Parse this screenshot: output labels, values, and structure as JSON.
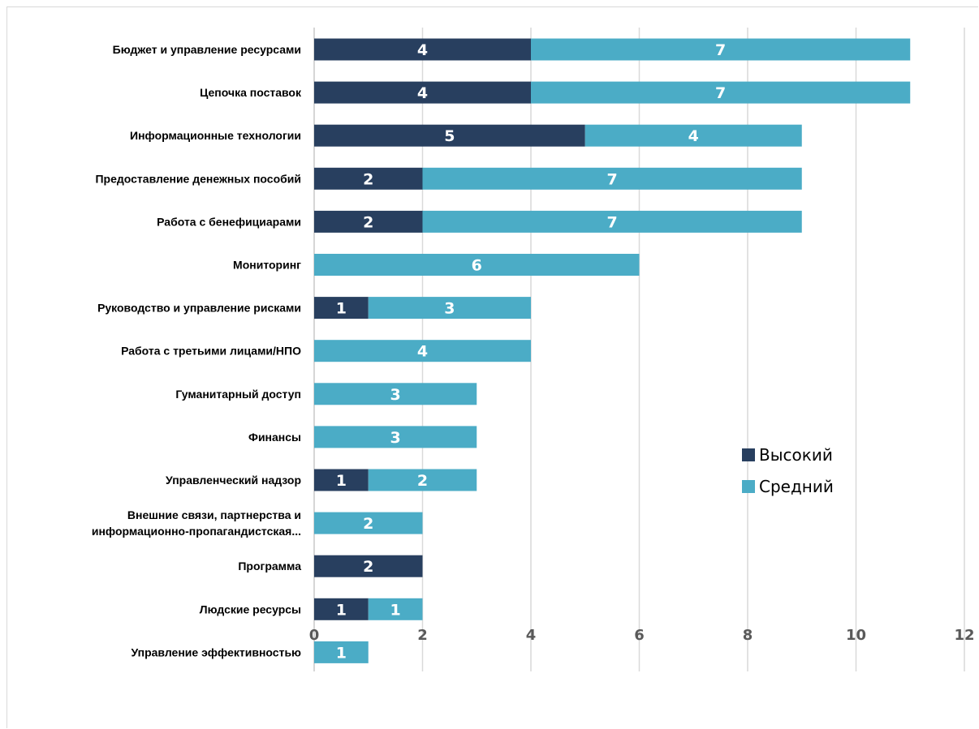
{
  "chart_data": {
    "type": "bar",
    "orientation": "horizontal",
    "stacked": true,
    "categories": [
      [
        "Бюджет и управление ресурсами"
      ],
      [
        "Цепочка поставок"
      ],
      [
        "Информационные технологии"
      ],
      [
        "Предоставление денежных пособий"
      ],
      [
        "Работа с бенефициарами"
      ],
      [
        "Мониторинг"
      ],
      [
        "Руководство и управление рисками"
      ],
      [
        "Работа с третьими лицами/НПО"
      ],
      [
        "Гуманитарный доступ"
      ],
      [
        "Финансы"
      ],
      [
        "Управленческий надзор"
      ],
      [
        "Внешние связи, партнерства и",
        "информационно-пропагандистская..."
      ],
      [
        "Программа"
      ],
      [
        "Людские ресурсы"
      ],
      [
        "Управление эффективностью"
      ]
    ],
    "series": [
      {
        "name": "Высокий",
        "color": "#283f5f",
        "values": [
          4,
          4,
          5,
          2,
          2,
          0,
          1,
          0,
          0,
          0,
          1,
          0,
          2,
          1,
          0
        ]
      },
      {
        "name": "Средний",
        "color": "#4bacc6",
        "values": [
          7,
          7,
          4,
          7,
          7,
          6,
          3,
          4,
          3,
          3,
          2,
          2,
          0,
          1,
          1
        ]
      }
    ],
    "xlim": [
      0,
      12
    ],
    "xticks": [
      0,
      2,
      4,
      6,
      8,
      10,
      12
    ],
    "grid": "vertical",
    "legend_position": "right",
    "data_labels": true,
    "title": "",
    "xlabel": "",
    "ylabel": ""
  }
}
